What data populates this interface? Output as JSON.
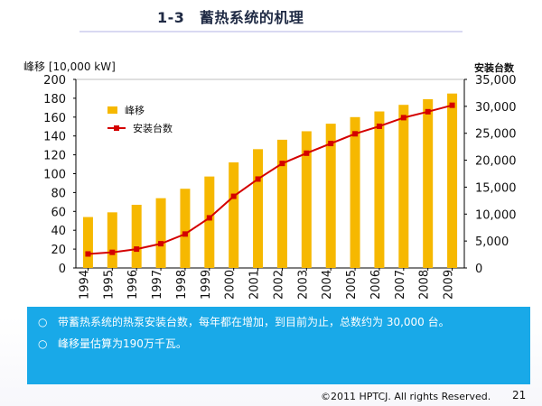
{
  "slide": {
    "title": "1-3　蓄热系统的机理",
    "left_axis_unit": "峰移 [10,000 kW]",
    "right_axis_unit": "安装台数",
    "notes": [
      "带蓄热系统的热泵安装台数，每年都在增加，到目前为止，总数约为 30,000 台。",
      "峰移量估算为190万千瓦。"
    ],
    "note_bullet_symbol": "○",
    "footer": "©2011 HPTCJ. All rights Reserved.",
    "page_number": "21"
  },
  "colors": {
    "bar": "#f6b800",
    "line": "#d40000",
    "note_background": "#19a9e8",
    "grid": "#d9d9d9"
  },
  "chart_data": {
    "type": "bar",
    "categories": [
      "1994",
      "1995",
      "1996",
      "1997",
      "1998",
      "1999",
      "2000",
      "2001",
      "2002",
      "2003",
      "2004",
      "2005",
      "2006",
      "2007",
      "2008",
      "2009"
    ],
    "series": [
      {
        "name": "峰移",
        "type": "bar",
        "axis": "left",
        "values": [
          54,
          59,
          67,
          74,
          84,
          97,
          112,
          126,
          136,
          145,
          153,
          160,
          166,
          173,
          179,
          185
        ]
      },
      {
        "name": "安装台数",
        "type": "line",
        "axis": "right",
        "values": [
          2600,
          2900,
          3500,
          4500,
          6300,
          9300,
          13300,
          16500,
          19400,
          21300,
          23100,
          24900,
          26300,
          27900,
          29000,
          30200
        ]
      }
    ],
    "left_axis": {
      "label": "峰移 [10,000 kW]",
      "ylim": [
        0,
        200
      ],
      "ticks": [
        0,
        20,
        40,
        60,
        80,
        100,
        120,
        140,
        160,
        180,
        200
      ],
      "tick_labels": [
        "0",
        "20",
        "40",
        "60",
        "80",
        "100",
        "120",
        "140",
        "160",
        "180",
        "200"
      ]
    },
    "right_axis": {
      "label": "安装台数",
      "ylim": [
        0,
        35000
      ],
      "ticks": [
        0,
        5000,
        10000,
        15000,
        20000,
        25000,
        30000,
        35000
      ],
      "tick_labels": [
        "0",
        "5,000",
        "10,000",
        "15,000",
        "20,000",
        "25,000",
        "30,000",
        "35,000"
      ]
    },
    "grid": false,
    "legend": "upper-left"
  }
}
